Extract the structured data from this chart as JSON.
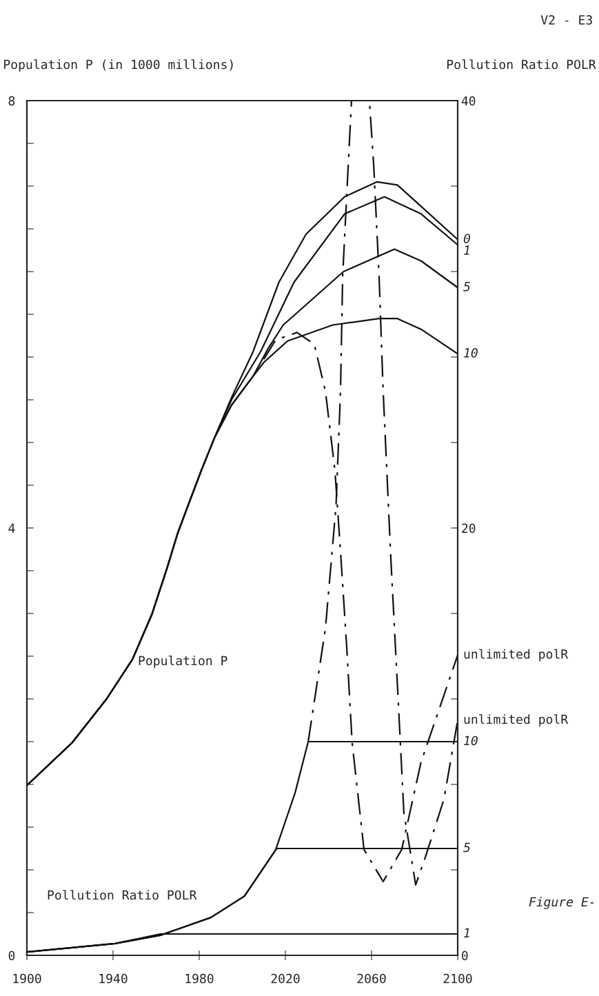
{
  "chart_data": {
    "type": "line",
    "ylabel": "Population P (in 1000 millions)",
    "y2label": "Pollution Ratio POLR",
    "xlim": [
      1900,
      2100
    ],
    "xticks": [
      1900,
      1940,
      1980,
      2020,
      2060,
      2100
    ],
    "ylim": [
      0,
      8
    ],
    "yticks": [
      0,
      {
        "value": 0.4,
        "label": null
      },
      {
        "value": 0.8,
        "label": null
      },
      {
        "value": 1.2,
        "label": null
      },
      {
        "value": 1.6,
        "label": null
      },
      {
        "value": 2,
        "label": null
      },
      {
        "value": 2.4,
        "label": null
      },
      {
        "value": 2.8,
        "label": null
      },
      {
        "value": 3.2,
        "label": null
      },
      {
        "value": 3.6,
        "label": null
      },
      4,
      {
        "value": 4.4,
        "label": null
      },
      {
        "value": 4.8,
        "label": null
      },
      {
        "value": 5.2,
        "label": null
      },
      {
        "value": 5.6,
        "label": null
      },
      {
        "value": 6,
        "label": null
      },
      {
        "value": 6.4,
        "label": null
      },
      {
        "value": 6.8,
        "label": null
      },
      {
        "value": 7.2,
        "label": null
      },
      {
        "value": 7.6,
        "label": null
      },
      8
    ],
    "y2lim": [
      0,
      40
    ],
    "y2ticks": [
      0,
      {
        "value": 4,
        "label": null
      },
      {
        "value": 8,
        "label": null
      },
      {
        "value": 12,
        "label": null
      },
      {
        "value": 16,
        "label": null
      },
      20,
      {
        "value": 24,
        "label": null
      },
      {
        "value": 28,
        "label": null
      },
      {
        "value": 32,
        "label": null
      },
      {
        "value": 36,
        "label": null
      },
      40
    ],
    "grid": false,
    "legend": false,
    "marker": "none",
    "series": [
      {
        "name": "0",
        "color": "#111111",
        "line_style": "solid",
        "x": [
          1900,
          1921,
          1937,
          1949,
          1958,
          1965,
          1970,
          1975,
          1981,
          1987,
          1995,
          2005,
          2017,
          2029.6,
          2047.5,
          2062.6,
          2072,
          2083,
          2100
        ],
        "values": [
          1.59,
          1.99,
          2.4,
          2.77,
          3.19,
          3.62,
          3.95,
          4.22,
          4.54,
          4.84,
          5.22,
          5.65,
          6.3,
          6.75,
          7.1,
          7.24,
          7.21,
          7.01,
          6.7
        ]
      },
      {
        "name": "1",
        "color": "#111111",
        "line_style": "solid",
        "x": [
          1900,
          1921,
          1937,
          1949,
          1958,
          1965,
          1970,
          1975,
          1981,
          1987,
          1995,
          2008.5,
          2024,
          2047.5,
          2066,
          2083,
          2100
        ],
        "values": [
          1.59,
          1.99,
          2.4,
          2.77,
          3.19,
          3.62,
          3.95,
          4.22,
          4.54,
          4.84,
          5.2,
          5.65,
          6.3,
          6.94,
          7.1,
          6.94,
          6.65
        ]
      },
      {
        "name": "5",
        "color": "#111111",
        "line_style": "solid",
        "x": [
          1900,
          1921,
          1937,
          1949,
          1958,
          1965,
          1970,
          1975,
          1981,
          1987,
          1995,
          2005,
          2012,
          2019,
          2033,
          2047,
          2070.6,
          2083,
          2100
        ],
        "values": [
          1.59,
          1.99,
          2.4,
          2.77,
          3.19,
          3.62,
          3.95,
          4.22,
          4.54,
          4.84,
          5.15,
          5.42,
          5.68,
          5.9,
          6.15,
          6.4,
          6.61,
          6.5,
          6.25
        ]
      },
      {
        "name": "10",
        "color": "#111111",
        "line_style": "solid",
        "x": [
          1900,
          1921,
          1937,
          1949,
          1958,
          1965,
          1970,
          1975,
          1981,
          1987,
          1995,
          2005,
          2010,
          2021,
          2042,
          2063.5,
          2072,
          2083,
          2100
        ],
        "values": [
          1.59,
          1.99,
          2.4,
          2.77,
          3.19,
          3.62,
          3.95,
          4.22,
          4.54,
          4.84,
          5.15,
          5.42,
          5.55,
          5.75,
          5.9,
          5.96,
          5.96,
          5.86,
          5.63
        ]
      },
      {
        "name": "unlimited polR",
        "color": "#111111",
        "line_style": "dashdot",
        "x": [
          2010,
          2015.5,
          2025.4,
          2033.4,
          2038.6,
          2043,
          2045.6,
          2048.5,
          2051,
          2056.5,
          2065.4,
          2074,
          2083,
          2100
        ],
        "values": [
          5.58,
          5.76,
          5.83,
          5.72,
          5.28,
          4.54,
          3.78,
          2.88,
          1.99,
          0.99,
          0.69,
          0.99,
          1.81,
          2.81
        ]
      },
      {
        "name": "1",
        "axis": "y2",
        "color": "#111111",
        "line_style": "solid",
        "x": [
          1900,
          1941,
          1962,
          2100
        ],
        "values": [
          0.16,
          0.55,
          1,
          1
        ]
      },
      {
        "name": "5",
        "axis": "y2",
        "color": "#111111",
        "line_style": "solid",
        "x": [
          1900,
          1941,
          1962,
          1985.4,
          2001,
          2016,
          2100
        ],
        "values": [
          0.16,
          0.55,
          0.94,
          1.77,
          2.77,
          5,
          5
        ]
      },
      {
        "name": "10",
        "axis": "y2",
        "color": "#111111",
        "line_style": "solid",
        "x": [
          1900,
          1941,
          1962,
          1985.4,
          2001,
          2015.5,
          2024.5,
          2030.6,
          2100
        ],
        "values": [
          0.16,
          0.55,
          0.94,
          1.77,
          2.77,
          4.94,
          7.6,
          10,
          10
        ]
      },
      {
        "name": "unlimited polR",
        "axis": "y2",
        "color": "#111111",
        "line_style": "dashdot",
        "x": [
          2030.6,
          2038.6,
          2043.5,
          2045.6,
          2046.6,
          2050.7,
          2054.6,
          2059,
          2061,
          2063.5,
          2065.4,
          2069,
          2072.5,
          2075,
          2080.5,
          2085,
          2093.6,
          2100
        ],
        "values": [
          10,
          15.3,
          21,
          26.4,
          31.8,
          40,
          null,
          40,
          37,
          31.8,
          26.4,
          18.5,
          11.7,
          6.7,
          3.3,
          4.6,
          7.3,
          11
        ]
      }
    ],
    "annotations": [
      "Population P",
      "Pollution Ratio POLR",
      "V2 - E3",
      "Figure E-"
    ]
  }
}
